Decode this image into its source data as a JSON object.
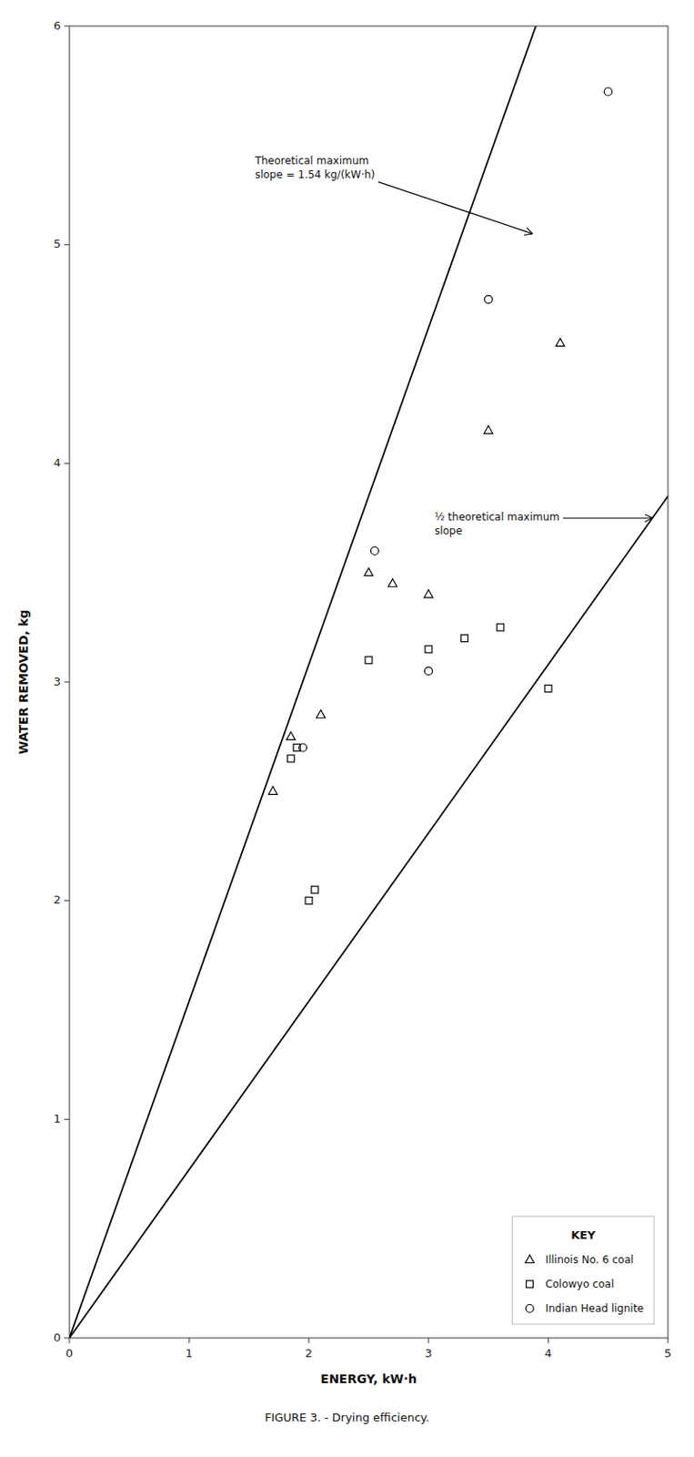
{
  "chart_data": {
    "type": "scatter",
    "title": "FIGURE 3. - Drying efficiency.",
    "xlabel": "ENERGY, kW·h",
    "ylabel": "WATER REMOVED, kg",
    "xlim": [
      0,
      5
    ],
    "ylim": [
      0,
      6
    ],
    "xticks": [
      0,
      1,
      2,
      3,
      4,
      5
    ],
    "yticks": [
      0,
      1,
      2,
      3,
      4,
      5,
      6
    ],
    "grid": false,
    "legend": "lower right",
    "legend_title": "KEY",
    "series": [
      {
        "name": "Illinois No. 6 coal",
        "color": "#000000",
        "marker": "triangle",
        "x": [
          1.7,
          1.85,
          2.1,
          2.5,
          2.7,
          3.0,
          3.5,
          4.1
        ],
        "values": [
          2.5,
          2.75,
          2.85,
          3.5,
          3.45,
          3.4,
          4.15,
          4.55
        ]
      },
      {
        "name": "Colowyo coal",
        "color": "#000000",
        "marker": "square",
        "x": [
          1.85,
          1.9,
          2.0,
          2.05,
          2.5,
          3.0,
          3.3,
          3.6,
          4.0
        ],
        "values": [
          2.65,
          2.7,
          2.0,
          2.05,
          3.1,
          3.15,
          3.2,
          3.25,
          2.97
        ]
      },
      {
        "name": "Indian Head lignite",
        "color": "#000000",
        "marker": "circle",
        "x": [
          1.95,
          2.55,
          3.0,
          3.5,
          4.5
        ],
        "values": [
          2.7,
          3.6,
          3.05,
          4.75,
          5.7
        ]
      }
    ],
    "reference_lines": [
      {
        "slope": 1.54,
        "color": "#000000"
      },
      {
        "slope": 0.77,
        "color": "#000000"
      }
    ],
    "annotations": [
      {
        "text": "Theoretical maximum\nslope = 1.54 kg/(kW·h)",
        "x": 3.87,
        "y": 5.05,
        "text_x": 1.55,
        "text_y": 5.35
      },
      {
        "text": "½ theoretical maximum\nslope",
        "x": 4.87,
        "y": 3.75,
        "text_x": 3.05,
        "text_y": 3.72
      }
    ]
  }
}
